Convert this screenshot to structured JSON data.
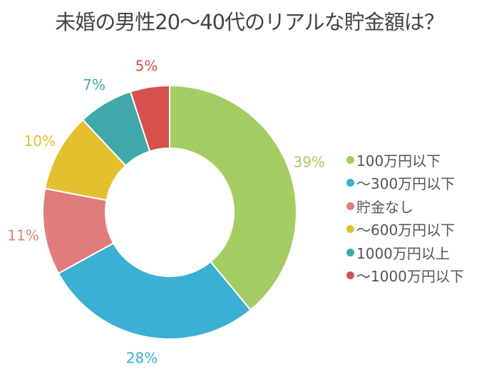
{
  "chart_data": {
    "type": "pie",
    "variant": "donut",
    "title": "未婚の男性20〜40代のリアルな貯金額は？",
    "slices": [
      {
        "label": "100万円以下",
        "value": 39,
        "display": "39%",
        "color": "#a3cd62"
      },
      {
        "label": "〜300万円以下",
        "value": 28,
        "display": "28%",
        "color": "#3ab0d2"
      },
      {
        "label": "貯金なし",
        "value": 11,
        "display": "11%",
        "color": "#e07c7c"
      },
      {
        "label": "〜600万円以下",
        "value": 10,
        "display": "10%",
        "color": "#e4c02e"
      },
      {
        "label": "1000万円以上",
        "value": 7,
        "display": "7%",
        "color": "#40a8aa"
      },
      {
        "label": "〜1000万円以下",
        "value": 5,
        "display": "5%",
        "color": "#d6504c"
      }
    ],
    "legend_position": "right"
  }
}
